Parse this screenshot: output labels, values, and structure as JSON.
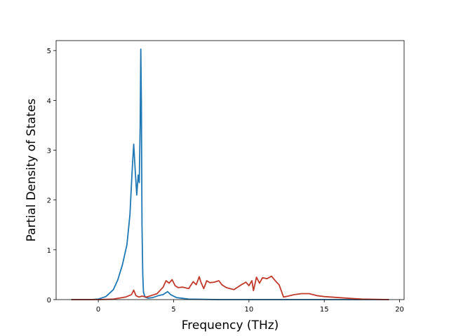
{
  "chart_data": {
    "type": "line",
    "title": "",
    "xlabel": "Frequency (THz)",
    "ylabel": "Partial Density of States",
    "xlim": [
      -2.8,
      20.3
    ],
    "ylim": [
      0,
      5.2
    ],
    "xticks": [
      0,
      5,
      10,
      15,
      20
    ],
    "xtick_labels": [
      "0",
      "5",
      "10",
      "15",
      "20"
    ],
    "yticks": [
      0,
      1,
      2,
      3,
      4,
      5
    ],
    "ytick_labels": [
      "0",
      "1",
      "2",
      "3",
      "4",
      "5"
    ],
    "grid": false,
    "legend": "none",
    "series": [
      {
        "color": "#1f77b4",
        "x": [
          -1.8,
          -0.5,
          0,
          0.5,
          1.0,
          1.3,
          1.6,
          1.9,
          2.1,
          2.25,
          2.35,
          2.45,
          2.55,
          2.65,
          2.72,
          2.78,
          2.82,
          2.86,
          2.9,
          2.95,
          3.0,
          3.1,
          3.3,
          3.6,
          4.0,
          4.3,
          4.5,
          4.6,
          4.8,
          5.2,
          6.0,
          8.0,
          19.3
        ],
        "y": [
          0,
          0,
          0.01,
          0.06,
          0.2,
          0.4,
          0.7,
          1.1,
          1.7,
          2.6,
          3.12,
          2.6,
          2.1,
          2.5,
          2.35,
          3.5,
          5.03,
          4.0,
          1.5,
          0.5,
          0.15,
          0.05,
          0.03,
          0.04,
          0.08,
          0.1,
          0.14,
          0.16,
          0.1,
          0.04,
          0.01,
          0,
          0
        ]
      },
      {
        "color": "#c0392b",
        "x": [
          -1.8,
          0,
          1.0,
          1.8,
          2.2,
          2.35,
          2.5,
          2.7,
          2.9,
          3.2,
          3.5,
          3.9,
          4.3,
          4.5,
          4.7,
          4.9,
          5.1,
          5.3,
          5.6,
          6.0,
          6.3,
          6.5,
          6.7,
          6.8,
          7.0,
          7.2,
          7.4,
          7.7,
          8.0,
          8.2,
          8.5,
          9.0,
          9.5,
          9.8,
          10.0,
          10.2,
          10.3,
          10.5,
          10.7,
          10.9,
          11.2,
          11.5,
          11.8,
          12.0,
          12.3,
          12.6,
          13.0,
          13.5,
          14.0,
          14.5,
          15.0,
          16.0,
          17.0,
          17.5,
          19.3
        ],
        "y": [
          0,
          0,
          0.01,
          0.05,
          0.1,
          0.19,
          0.08,
          0.05,
          0.07,
          0.05,
          0.08,
          0.12,
          0.25,
          0.38,
          0.33,
          0.4,
          0.28,
          0.24,
          0.25,
          0.22,
          0.36,
          0.3,
          0.46,
          0.36,
          0.22,
          0.38,
          0.34,
          0.35,
          0.38,
          0.3,
          0.24,
          0.2,
          0.3,
          0.35,
          0.28,
          0.38,
          0.18,
          0.45,
          0.33,
          0.44,
          0.42,
          0.47,
          0.36,
          0.3,
          0.05,
          0.07,
          0.1,
          0.12,
          0.12,
          0.08,
          0.06,
          0.04,
          0.02,
          0.01,
          0
        ]
      }
    ]
  }
}
